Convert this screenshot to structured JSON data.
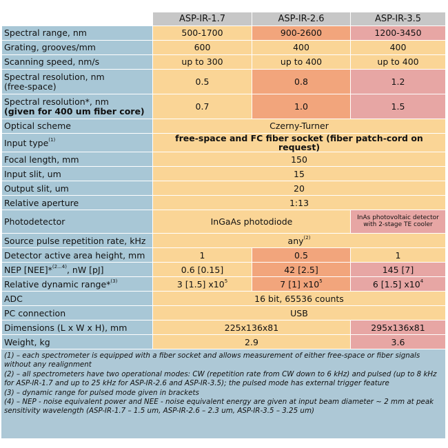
{
  "header": {
    "models": [
      "ASP-IR-1.7",
      "ASP-IR-2.6",
      "ASP-IR-3.5"
    ]
  },
  "rows": {
    "spectral_range": {
      "label": "Spectral range, nm",
      "values": [
        "500-1700",
        "900-2600",
        "1200-3450"
      ]
    },
    "grating": {
      "label": "Grating, grooves/mm",
      "values": [
        "600",
        "400",
        "400"
      ]
    },
    "scanning_speed": {
      "label": "Scanning speed, nm/s",
      "values": [
        "up to 300",
        "up to 400",
        "up to 400"
      ]
    },
    "res_free": {
      "label_line1": "Spectral resolution, nm",
      "label_line2": "(free-space)",
      "values": [
        "0.5",
        "0.8",
        "1.2"
      ]
    },
    "res_fiber": {
      "label_line1": "Spectral resolution*, nm",
      "label_line2": "(given for 400 um fiber core)",
      "values": [
        "0.7",
        "1.0",
        "1.5"
      ]
    },
    "optical_scheme": {
      "label": "Optical scheme",
      "value": "Czerny-Turner"
    },
    "input_type": {
      "label": "Input type",
      "sup": "(1)",
      "value": "free-space and FC fiber socket (fiber patch-cord on request)"
    },
    "focal_length": {
      "label": "Focal length, mm",
      "value": "150"
    },
    "input_slit": {
      "label": "Input slit, um",
      "value": "15"
    },
    "output_slit": {
      "label": "Output slit, um",
      "value": "20"
    },
    "aperture": {
      "label": "Relative aperture",
      "value": "1:13"
    },
    "photodetector": {
      "label": "Photodetector",
      "value_a": "InGaAs photodiode",
      "value_b_line1": "InAs photovoltaic detector",
      "value_b_line2": "with 2-stage TE cooler"
    },
    "pulse_rate": {
      "label": "Source pulse repetition rate, kHz",
      "value": "any",
      "sup": "(2)"
    },
    "area_height": {
      "label": "Detector active area height, mm",
      "values": [
        "1",
        "0.5",
        "1"
      ]
    },
    "nep": {
      "label": "NEP [NEE]*",
      "sup": "(2...4)",
      "label_tail": ", nW [pJ]",
      "values": [
        "0.6 [0.15]",
        "42 [2.5]",
        "145 [7]"
      ]
    },
    "dynamic_range": {
      "label": "Relative dynamic range*",
      "sup": "(3)",
      "bases": [
        "3 [1.5] x10",
        "7 [1] x10",
        "6 [1.5] x10"
      ],
      "exps": [
        "5",
        "5",
        "4"
      ]
    },
    "adc": {
      "label": "ADC",
      "value": "16 bit, 65536 counts"
    },
    "pc": {
      "label": "PC connection",
      "value": "USB"
    },
    "dimensions": {
      "label": "Dimensions (L x W x H), mm",
      "value_a": "225x136x81",
      "value_b": "295x136x81"
    },
    "weight": {
      "label": "Weight, kg",
      "value_a": "2.9",
      "value_b": "3.6"
    }
  },
  "notes": [
    "(1) – each spectrometer is equipped with a fiber socket and allows measurement of either free-space or fiber signals without any realignment",
    "(2) – all spectrometers have two operational modes: CW (repetition rate from CW down to 6 kHz) and pulsed (up to 8 kHz for ASP-IR-1.7 and up to 25 kHz for ASP-IR-2.6 and ASP-IR-3.5); the pulsed mode has external trigger feature",
    "(3) – dynamic range for pulsed mode given in brackets",
    "(4) – NEP - noise equivalent power and NEE - noise equivalent energy are given at input beam diameter ~ 2 mm at peak sensitivity wavelength (ASP-IR-1.7 – 1.5 um, ASP-IR-2.6 – 2.3 um, ASP-IR-3.5 – 3.25 um)"
  ],
  "colors": {
    "label_bg": "#a8c7d6",
    "header_bg": "#c7c7c7",
    "col1_bg": "#fad596",
    "col2_bg": "#f2a57c",
    "col3_bg": "#e7a6a4",
    "notes_bg": "#adc8d6"
  }
}
